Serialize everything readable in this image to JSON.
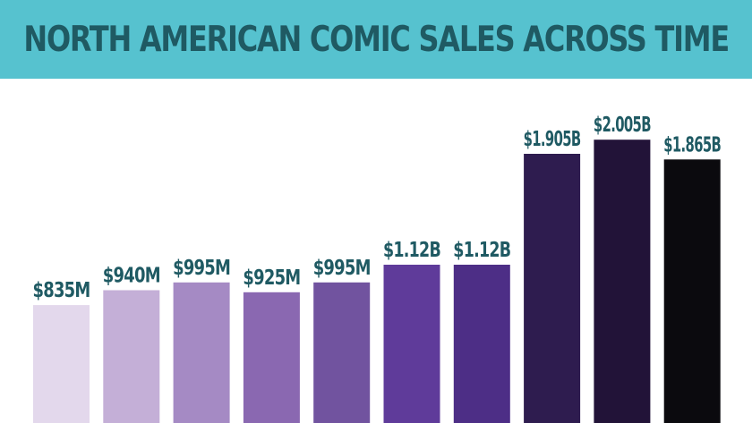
{
  "header": {
    "title_part1": "NORTH AMERICAN COMIC SALES ",
    "title_part2": "ACROSS TIME",
    "background": "#56c2cf",
    "text_color": "#1f5a63"
  },
  "chart_data": {
    "type": "bar",
    "title": "NORTH AMERICAN COMIC SALES ACROSS TIME",
    "xlabel": "",
    "ylabel": "",
    "ylim": [
      0,
      2.1
    ],
    "grid": false,
    "unit": "billion USD",
    "values": [
      0.835,
      0.94,
      0.995,
      0.925,
      0.995,
      1.12,
      1.12,
      1.905,
      2.005,
      1.865
    ],
    "labels": [
      "$835M",
      "$940M",
      "$995M",
      "$925M",
      "$995M",
      "$1.12B",
      "$1.12B",
      "$1.905B",
      "$2.005B",
      "$1.865B"
    ],
    "colors": [
      "#e3d8ec",
      "#c4afd7",
      "#a58ac4",
      "#8a68b1",
      "#71539f",
      "#5f3b9a",
      "#4d2e86",
      "#2e1c4f",
      "#221338",
      "#0b0a0e"
    ],
    "label_color": "#1f5a63"
  }
}
